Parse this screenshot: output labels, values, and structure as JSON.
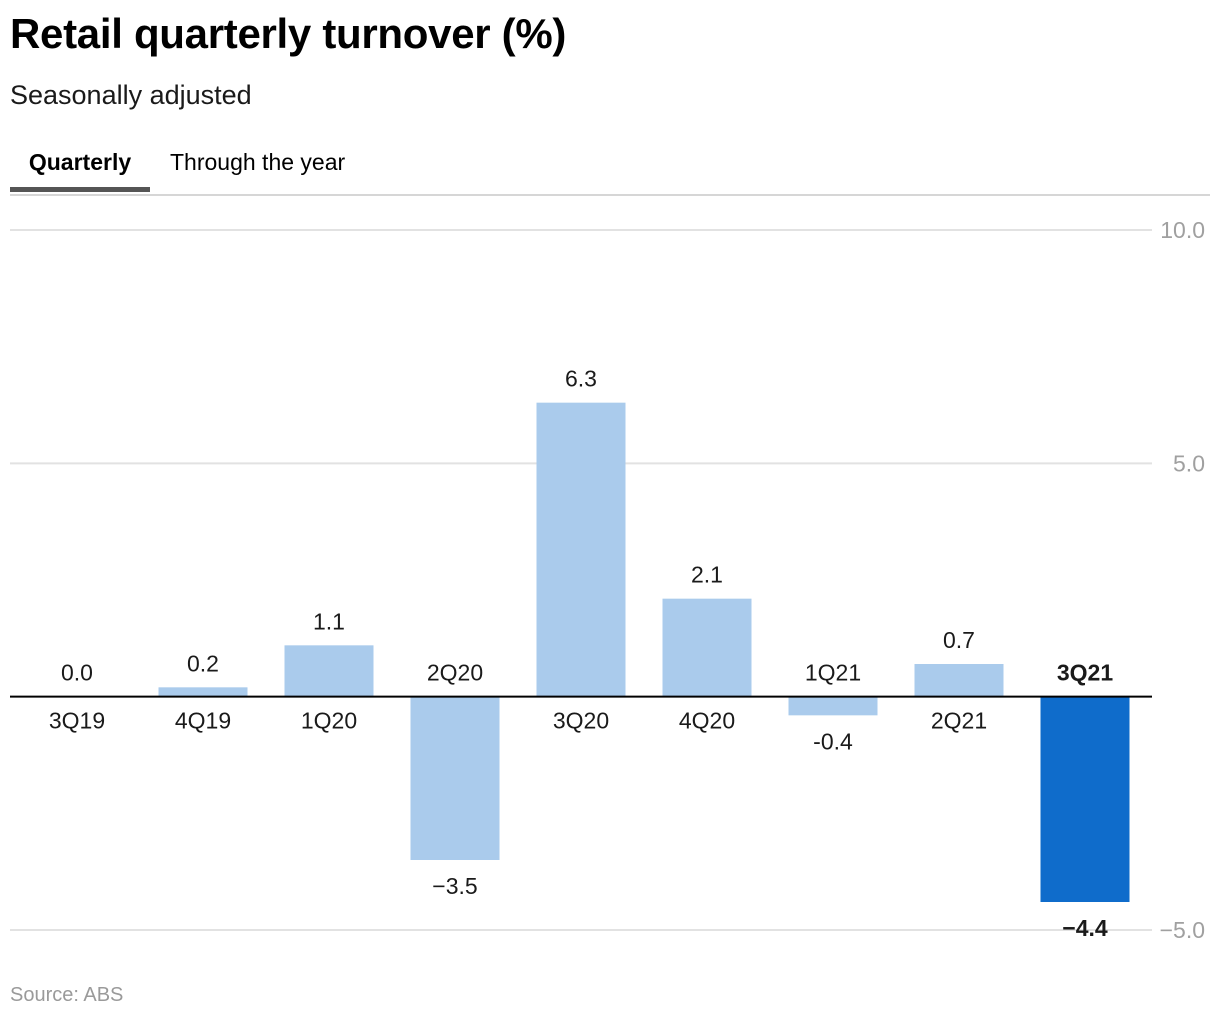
{
  "header": {
    "title": "Retail quarterly turnover (%)",
    "subtitle": "Seasonally adjusted"
  },
  "tabs": [
    {
      "label": "Quarterly",
      "active": true
    },
    {
      "label": "Through the year",
      "active": false
    }
  ],
  "footer": {
    "source": "Source: ABS"
  },
  "colors": {
    "bar": "#aacbec",
    "highlight_bar": "#0f6ccb",
    "grid": "#e2e2e2",
    "axis": "#000000",
    "tick_text": "#a0a0a0"
  },
  "chart_data": {
    "type": "bar",
    "categories": [
      "3Q19",
      "4Q19",
      "1Q20",
      "2Q20",
      "3Q20",
      "4Q20",
      "1Q21",
      "2Q21",
      "3Q21"
    ],
    "values": [
      0.0,
      0.2,
      1.1,
      -3.5,
      6.3,
      2.1,
      -0.4,
      0.7,
      -4.4
    ],
    "value_labels": [
      "0.0",
      "0.2",
      "1.1",
      "−3.5",
      "6.3",
      "2.1",
      "-0.4",
      "0.7",
      "−4.4"
    ],
    "highlight_index": 8,
    "ylim": [
      -5,
      10
    ],
    "yticks": [
      10,
      5,
      -5
    ],
    "ytick_labels": [
      "10.0",
      "5.0",
      "−5.0"
    ],
    "y_axis_side": "right",
    "grid": true,
    "xlabel": "",
    "ylabel": ""
  }
}
